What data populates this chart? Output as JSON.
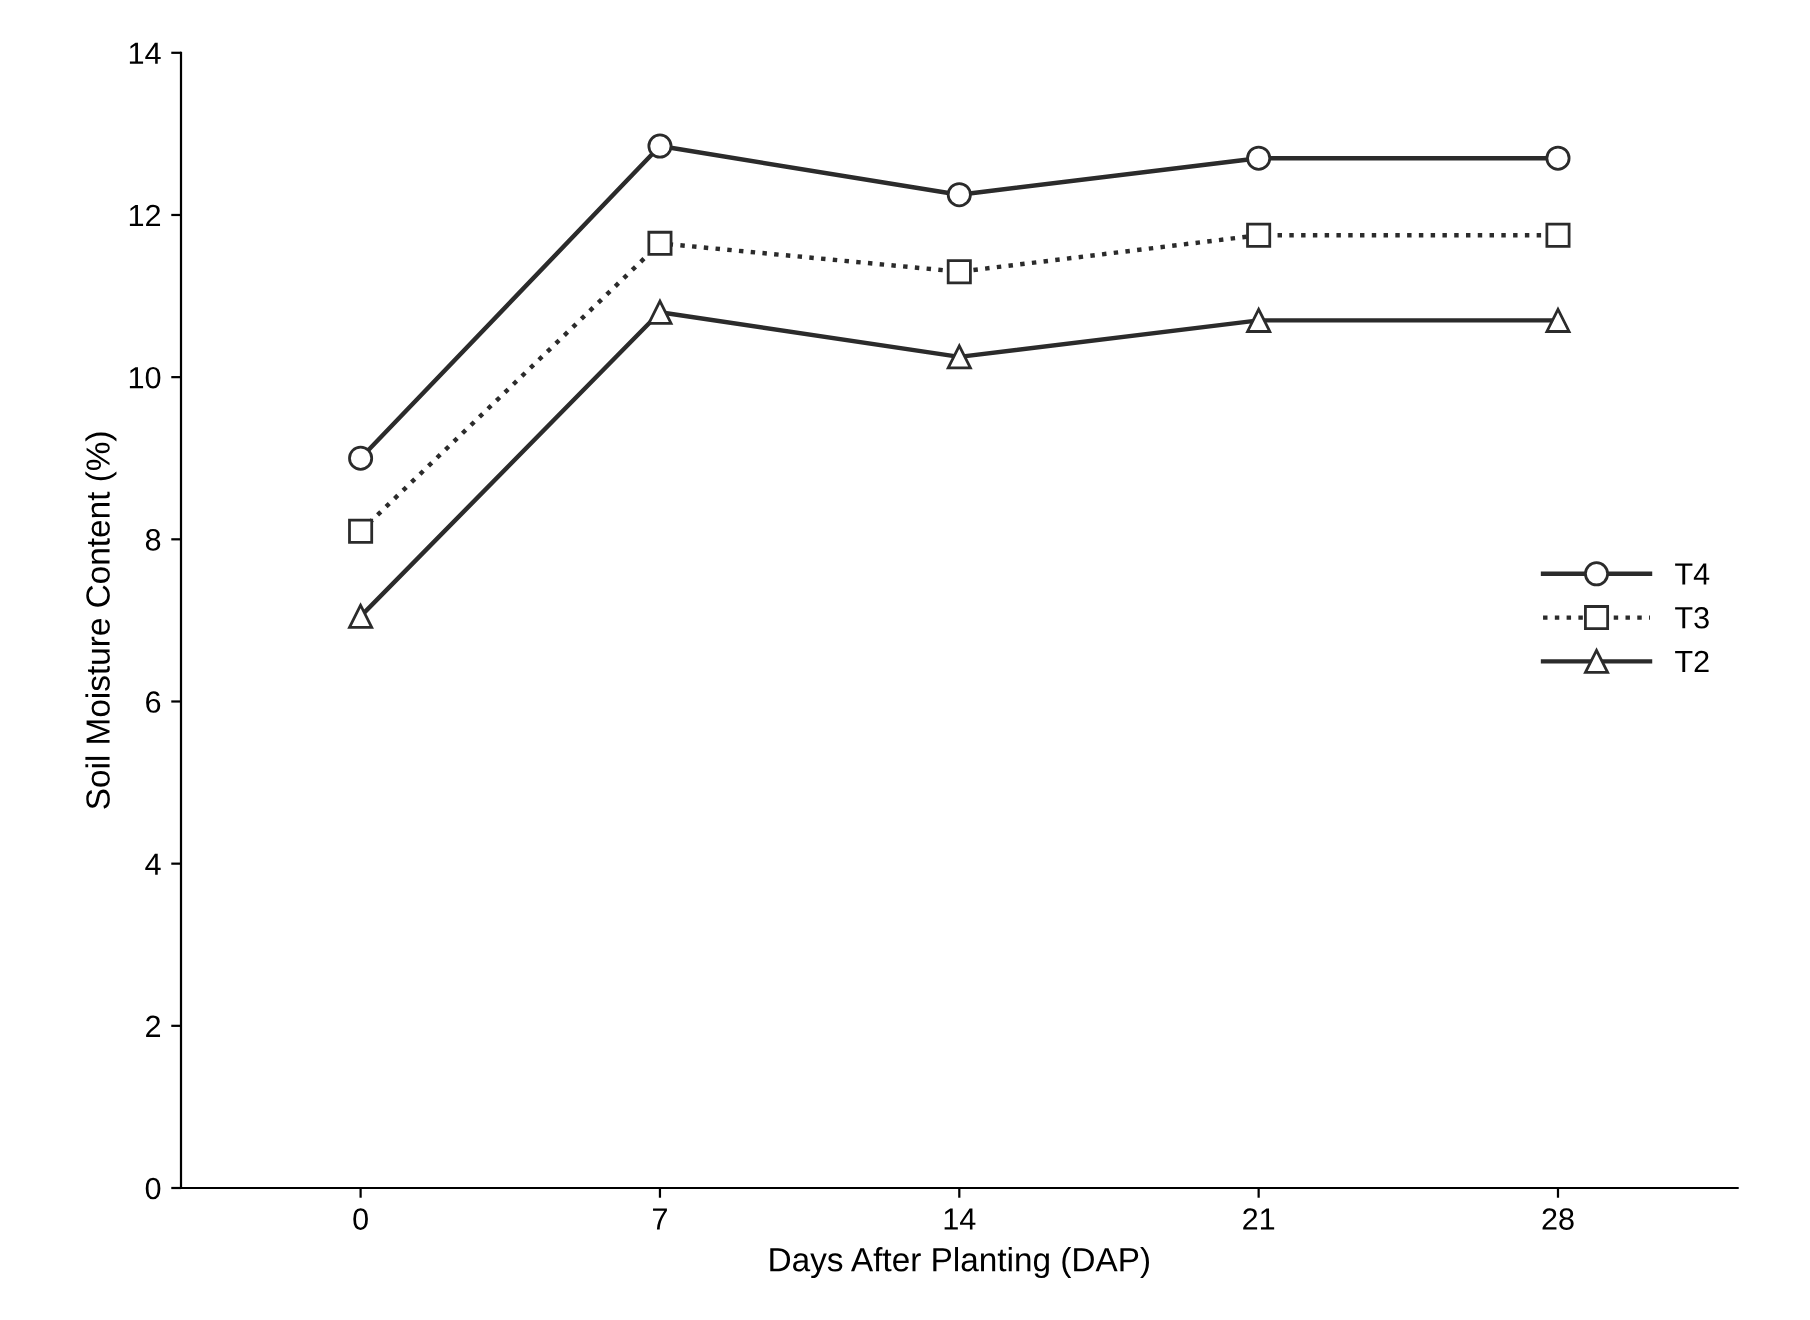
{
  "chart_data": {
    "type": "line",
    "xlabel": "Days After Planting (DAP)",
    "ylabel": "Soil Moisture Content (%)",
    "categories": [
      "0",
      "7",
      "14",
      "21",
      "28"
    ],
    "series": [
      {
        "name": "T4",
        "color": "#2b2b2b",
        "marker": "circle",
        "line_style": "solid",
        "values": [
          9.0,
          12.85,
          12.25,
          12.7,
          12.7
        ]
      },
      {
        "name": "T3",
        "color": "#2b2b2b",
        "marker": "square",
        "line_style": "dotted",
        "values": [
          8.1,
          11.65,
          11.3,
          11.75,
          11.75
        ]
      },
      {
        "name": "T2",
        "color": "#2b2b2b",
        "marker": "triangle",
        "line_style": "solid",
        "values": [
          7.05,
          10.8,
          10.25,
          10.7,
          10.7
        ]
      }
    ],
    "ylim": [
      0,
      14
    ],
    "yticks": [
      0,
      2,
      4,
      6,
      8,
      10,
      12,
      14
    ],
    "grid": false,
    "legend": "right"
  }
}
